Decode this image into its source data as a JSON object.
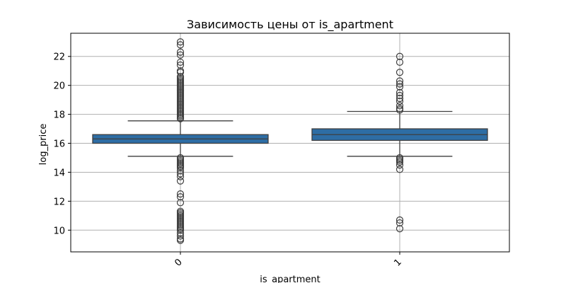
{
  "chart_data": {
    "type": "box",
    "title": "Зависимость цены от is_apartment",
    "xlabel": "is_apartment",
    "ylabel": "log_price",
    "categories": [
      "0",
      "1"
    ],
    "ylim": [
      8.5,
      23.6
    ],
    "yticks": [
      10,
      12,
      14,
      16,
      18,
      20,
      22
    ],
    "grid": true,
    "box_color": "#2e6da4",
    "boxes": [
      {
        "category": "0",
        "q1": 16.0,
        "median": 16.3,
        "q3": 16.6,
        "whisker_low": 15.1,
        "whisker_high": 17.55,
        "outliers": [
          9.3,
          9.4,
          9.6,
          9.8,
          10.0,
          10.1,
          10.2,
          10.3,
          10.4,
          10.5,
          10.6,
          10.7,
          10.8,
          10.9,
          11.0,
          11.1,
          11.2,
          11.3,
          11.9,
          12.3,
          12.5,
          13.4,
          13.7,
          13.9,
          14.1,
          14.3,
          14.4,
          14.5,
          14.6,
          14.7,
          14.8,
          14.9,
          15.0,
          17.7,
          17.8,
          17.9,
          18.0,
          18.1,
          18.2,
          18.3,
          18.4,
          18.5,
          18.6,
          18.7,
          18.8,
          18.9,
          19.0,
          19.1,
          19.2,
          19.3,
          19.4,
          19.5,
          19.6,
          19.7,
          19.8,
          19.9,
          20.0,
          20.1,
          20.2,
          20.3,
          20.4,
          20.5,
          20.6,
          20.9,
          21.0,
          21.4,
          21.6,
          22.1,
          22.3,
          22.8,
          23.0
        ]
      },
      {
        "category": "1",
        "q1": 16.2,
        "median": 16.6,
        "q3": 17.0,
        "whisker_low": 15.1,
        "whisker_high": 18.2,
        "outliers": [
          10.1,
          10.5,
          10.7,
          14.2,
          14.5,
          14.7,
          14.8,
          14.9,
          15.0,
          18.3,
          18.4,
          18.6,
          18.9,
          19.1,
          19.3,
          19.5,
          19.9,
          20.1,
          20.3,
          20.9,
          21.6,
          22.0
        ]
      }
    ]
  }
}
